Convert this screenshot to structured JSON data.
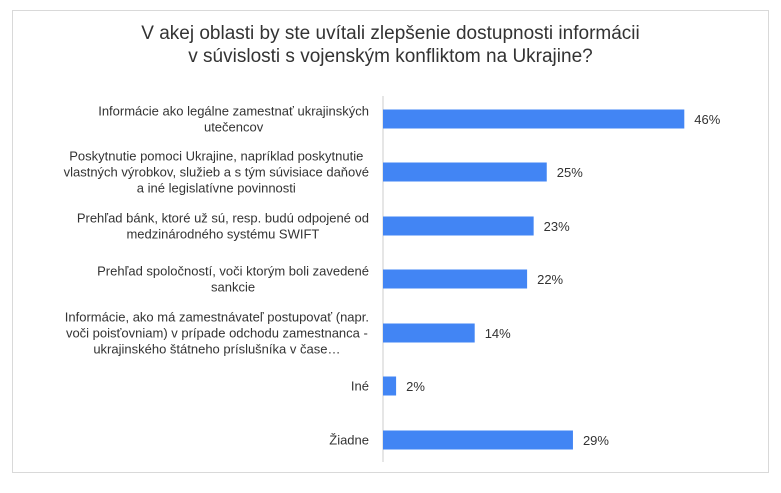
{
  "chart_data": {
    "type": "bar",
    "orientation": "horizontal",
    "title_lines": [
      "V akej oblasti by ste uvítali zlepšenie dostupnosti informácii",
      "v súvislosti s vojenským konfliktom na Ukrajine?"
    ],
    "categories": [
      [
        "Informácie ako legálne zamestnať ukrajinských",
        "utečencov"
      ],
      [
        "Poskytnutie pomoci Ukrajine, napríklad poskytnutie",
        "vlastných výrobkov, služieb a s tým súvisiace daňové",
        "a iné legislatívne povinnosti"
      ],
      [
        "Prehľad bánk, ktoré už sú, resp. budú odpojené od",
        "medzinárodného systému SWIFT"
      ],
      [
        "Prehľad spoločností, voči ktorým boli zavedené",
        "sankcie"
      ],
      [
        "Informácie, ako má zamestnávateľ postupovať (napr.",
        "voči poisťovniam) v prípade odchodu zamestnanca -",
        "ukrajinského štátneho príslušníka v čase…"
      ],
      [
        "Iné"
      ],
      [
        "Žiadne"
      ]
    ],
    "values": [
      46,
      25,
      23,
      22,
      14,
      2,
      29
    ],
    "value_labels": [
      "46%",
      "25%",
      "23%",
      "22%",
      "14%",
      "2%",
      "29%"
    ],
    "unit": "%",
    "xlim": [
      0,
      100
    ],
    "grid": false,
    "legend": "none",
    "bar_color": "#4285f4",
    "axis_color": "#cccccc"
  }
}
